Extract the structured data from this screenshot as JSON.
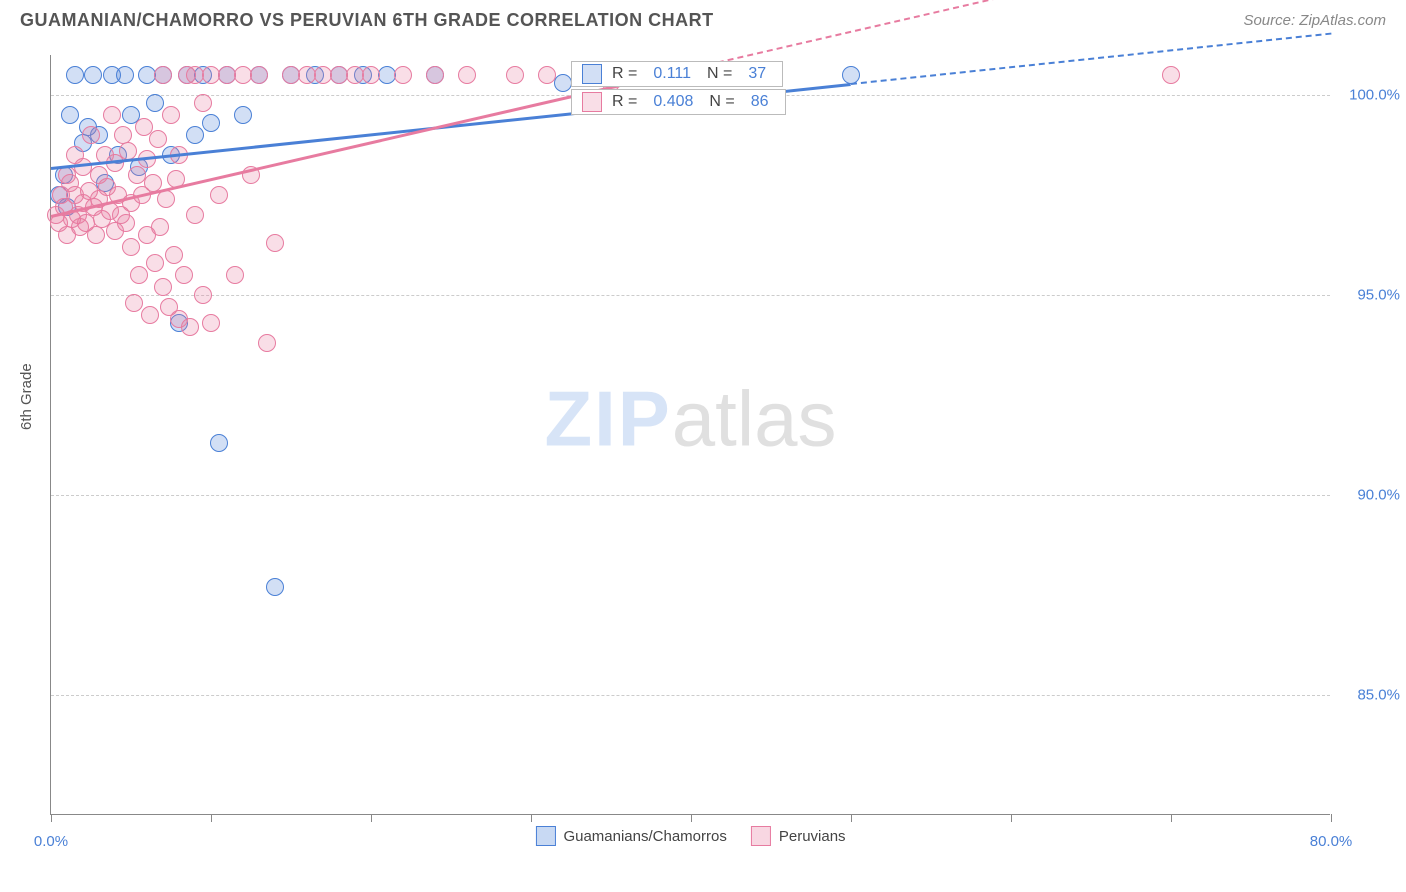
{
  "title": "GUAMANIAN/CHAMORRO VS PERUVIAN 6TH GRADE CORRELATION CHART",
  "source": "Source: ZipAtlas.com",
  "ylabel": "6th Grade",
  "watermark": {
    "part1": "ZIP",
    "part2": "atlas"
  },
  "chart": {
    "type": "scatter",
    "xlim": [
      0,
      80
    ],
    "ylim": [
      82,
      101
    ],
    "xticks": [
      0,
      10,
      20,
      30,
      40,
      50,
      60,
      70,
      80
    ],
    "xtick_labels": {
      "0": "0.0%",
      "80": "80.0%"
    },
    "yticks": [
      85,
      90,
      95,
      100
    ],
    "ytick_labels": [
      "85.0%",
      "90.0%",
      "95.0%",
      "100.0%"
    ],
    "background_color": "#ffffff",
    "grid_color": "#cccccc",
    "axis_color": "#888888",
    "tick_label_color": "#4a80d6",
    "marker_radius": 9,
    "marker_stroke_width": 1.5,
    "marker_fill_opacity": 0.25
  },
  "series": [
    {
      "name": "Guamanians/Chamorros",
      "color_stroke": "#4a80d6",
      "color_fill": "rgba(74,128,214,0.25)",
      "R": "0.111",
      "N": "37",
      "trend": {
        "x1": 0,
        "y1": 98.2,
        "x2": 50,
        "y2": 100.3,
        "dash_to_x": 80
      },
      "points": [
        [
          0.5,
          97.5
        ],
        [
          0.8,
          98.0
        ],
        [
          1.0,
          97.2
        ],
        [
          1.2,
          99.5
        ],
        [
          1.5,
          100.5
        ],
        [
          2.0,
          98.8
        ],
        [
          2.3,
          99.2
        ],
        [
          2.6,
          100.5
        ],
        [
          3.0,
          99.0
        ],
        [
          3.4,
          97.8
        ],
        [
          3.8,
          100.5
        ],
        [
          4.2,
          98.5
        ],
        [
          4.6,
          100.5
        ],
        [
          5.0,
          99.5
        ],
        [
          5.5,
          98.2
        ],
        [
          6.0,
          100.5
        ],
        [
          6.5,
          99.8
        ],
        [
          7.0,
          100.5
        ],
        [
          7.5,
          98.5
        ],
        [
          8.0,
          94.3
        ],
        [
          8.5,
          100.5
        ],
        [
          9.0,
          99.0
        ],
        [
          9.5,
          100.5
        ],
        [
          10.0,
          99.3
        ],
        [
          10.5,
          91.3
        ],
        [
          11.0,
          100.5
        ],
        [
          12.0,
          99.5
        ],
        [
          13.0,
          100.5
        ],
        [
          14.0,
          87.7
        ],
        [
          15.0,
          100.5
        ],
        [
          16.5,
          100.5
        ],
        [
          18.0,
          100.5
        ],
        [
          19.5,
          100.5
        ],
        [
          21.0,
          100.5
        ],
        [
          24.0,
          100.5
        ],
        [
          32.0,
          100.3
        ],
        [
          50.0,
          100.5
        ]
      ]
    },
    {
      "name": "Peruvians",
      "color_stroke": "#e77ba0",
      "color_fill": "rgba(231,123,160,0.25)",
      "R": "0.408",
      "N": "86",
      "trend": {
        "x1": 0,
        "y1": 97.0,
        "x2": 38,
        "y2": 100.5,
        "dash_to_x": 80
      },
      "points": [
        [
          0.3,
          97.0
        ],
        [
          0.5,
          96.8
        ],
        [
          0.6,
          97.5
        ],
        [
          0.8,
          97.2
        ],
        [
          1.0,
          96.5
        ],
        [
          1.0,
          98.0
        ],
        [
          1.2,
          97.8
        ],
        [
          1.3,
          96.9
        ],
        [
          1.5,
          97.5
        ],
        [
          1.5,
          98.5
        ],
        [
          1.7,
          97.0
        ],
        [
          1.8,
          96.7
        ],
        [
          2.0,
          97.3
        ],
        [
          2.0,
          98.2
        ],
        [
          2.2,
          96.8
        ],
        [
          2.4,
          97.6
        ],
        [
          2.5,
          99.0
        ],
        [
          2.7,
          97.2
        ],
        [
          2.8,
          96.5
        ],
        [
          3.0,
          98.0
        ],
        [
          3.0,
          97.4
        ],
        [
          3.2,
          96.9
        ],
        [
          3.4,
          98.5
        ],
        [
          3.5,
          97.7
        ],
        [
          3.7,
          97.1
        ],
        [
          3.8,
          99.5
        ],
        [
          4.0,
          96.6
        ],
        [
          4.0,
          98.3
        ],
        [
          4.2,
          97.5
        ],
        [
          4.4,
          97.0
        ],
        [
          4.5,
          99.0
        ],
        [
          4.7,
          96.8
        ],
        [
          4.8,
          98.6
        ],
        [
          5.0,
          97.3
        ],
        [
          5.0,
          96.2
        ],
        [
          5.2,
          94.8
        ],
        [
          5.4,
          98.0
        ],
        [
          5.5,
          95.5
        ],
        [
          5.7,
          97.5
        ],
        [
          5.8,
          99.2
        ],
        [
          6.0,
          96.5
        ],
        [
          6.0,
          98.4
        ],
        [
          6.2,
          94.5
        ],
        [
          6.4,
          97.8
        ],
        [
          6.5,
          95.8
        ],
        [
          6.7,
          98.9
        ],
        [
          6.8,
          96.7
        ],
        [
          7.0,
          95.2
        ],
        [
          7.0,
          100.5
        ],
        [
          7.2,
          97.4
        ],
        [
          7.4,
          94.7
        ],
        [
          7.5,
          99.5
        ],
        [
          7.7,
          96.0
        ],
        [
          7.8,
          97.9
        ],
        [
          8.0,
          94.4
        ],
        [
          8.0,
          98.5
        ],
        [
          8.3,
          95.5
        ],
        [
          8.5,
          100.5
        ],
        [
          8.7,
          94.2
        ],
        [
          9.0,
          97.0
        ],
        [
          9.0,
          100.5
        ],
        [
          9.5,
          95.0
        ],
        [
          9.5,
          99.8
        ],
        [
          10.0,
          100.5
        ],
        [
          10.0,
          94.3
        ],
        [
          10.5,
          97.5
        ],
        [
          11.0,
          100.5
        ],
        [
          11.5,
          95.5
        ],
        [
          12.0,
          100.5
        ],
        [
          12.5,
          98.0
        ],
        [
          13.0,
          100.5
        ],
        [
          13.5,
          93.8
        ],
        [
          14.0,
          96.3
        ],
        [
          15.0,
          100.5
        ],
        [
          16.0,
          100.5
        ],
        [
          17.0,
          100.5
        ],
        [
          18.0,
          100.5
        ],
        [
          19.0,
          100.5
        ],
        [
          20.0,
          100.5
        ],
        [
          22.0,
          100.5
        ],
        [
          24.0,
          100.5
        ],
        [
          26.0,
          100.5
        ],
        [
          29.0,
          100.5
        ],
        [
          31.0,
          100.5
        ],
        [
          35.0,
          100.3
        ],
        [
          70.0,
          100.5
        ]
      ]
    }
  ],
  "legend_bottom": [
    {
      "label": "Guamanians/Chamorros",
      "fill": "rgba(74,128,214,0.3)",
      "stroke": "#4a80d6"
    },
    {
      "label": "Peruvians",
      "fill": "rgba(231,123,160,0.3)",
      "stroke": "#e77ba0"
    }
  ],
  "stats_labels": {
    "R": "R =",
    "N": "N ="
  }
}
